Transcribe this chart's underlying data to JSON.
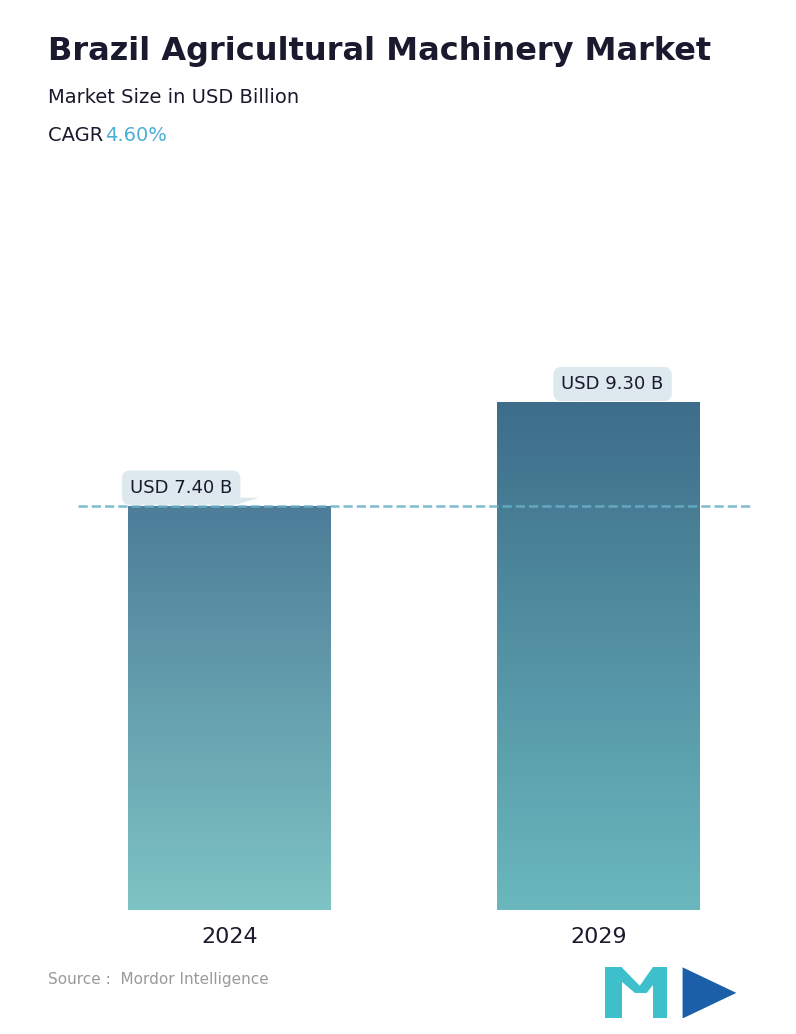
{
  "title": "Brazil Agricultural Machinery Market",
  "subtitle": "Market Size in USD Billion",
  "cagr_label": "CAGR ",
  "cagr_value": "4.60%",
  "cagr_color": "#4aafd4",
  "categories": [
    "2024",
    "2029"
  ],
  "values": [
    7.4,
    9.3
  ],
  "bar_labels": [
    "USD 7.40 B",
    "USD 9.30 B"
  ],
  "bar1_top_color": "#4d7d99",
  "bar1_bottom_color": "#7ec4c4",
  "bar2_top_color": "#3d6d8a",
  "bar2_bottom_color": "#6ab8be",
  "dashed_line_color": "#6aafc8",
  "dashed_line_y": 7.4,
  "annotation_bg_color": "#dce8ee",
  "annotation_text_color": "#1a1a2e",
  "source_text": "Source :  Mordor Intelligence",
  "source_color": "#999999",
  "background_color": "#ffffff",
  "title_fontsize": 23,
  "subtitle_fontsize": 14,
  "cagr_fontsize": 14,
  "tick_fontsize": 16,
  "annotation_fontsize": 13,
  "source_fontsize": 11,
  "ylim": [
    0,
    11.0
  ],
  "bar_width": 0.55,
  "bar_positions": [
    0,
    1
  ]
}
